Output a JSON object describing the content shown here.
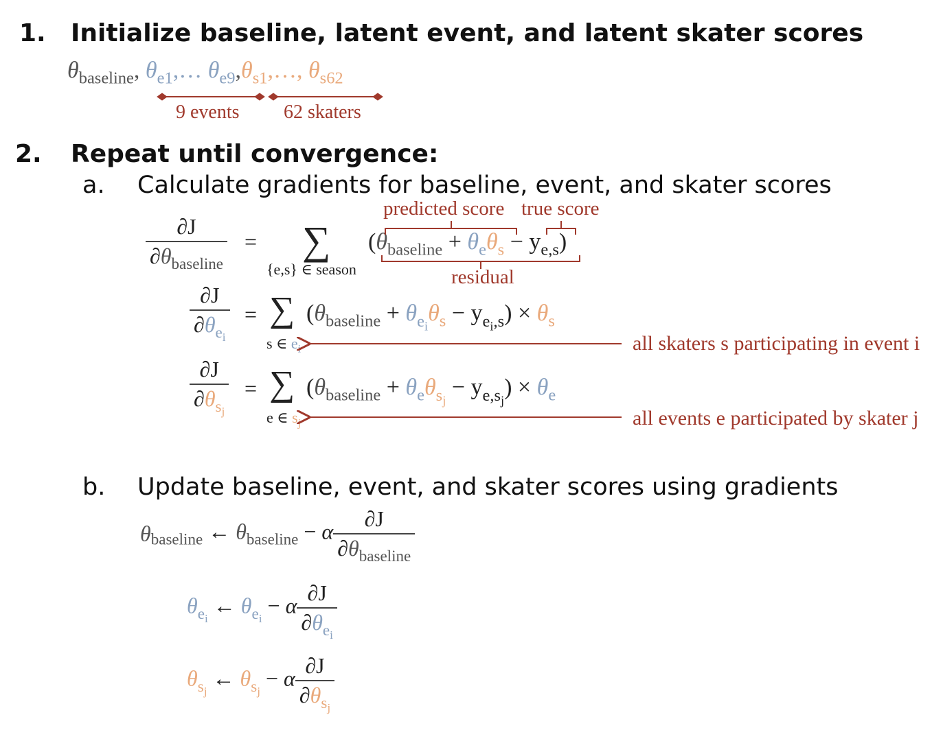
{
  "step1": {
    "number": "1.",
    "heading": "Initialize baseline, latent event, and latent skater scores",
    "params": {
      "baseline_sub": "baseline",
      "event_first_sub": "e1",
      "event_last_sub": "e9",
      "skater_first_sub": "s1",
      "skater_last_sub": "s62",
      "ellipsis_events": ",…",
      "ellipsis_skaters": ",…,"
    },
    "events_label": "9 events",
    "skaters_label": "62 skaters"
  },
  "step2": {
    "number": "2.",
    "heading": "Repeat until convergence:",
    "sub_a": {
      "letter": "a.",
      "text": "Calculate gradients for baseline, event, and skater scores",
      "annotations": {
        "predicted": "predicted score",
        "true": "true score",
        "residual": "residual",
        "all_skaters": "all skaters s participating in event i",
        "all_events": "all events e participated by skater j"
      },
      "eq1": {
        "num": "∂J",
        "den_sub": "baseline",
        "sum_index": "{e,s} ∈ season",
        "y_sub": "e,s"
      },
      "eq2": {
        "num": "∂J",
        "sum_index_prefix": "s ∈ e",
        "y_sub": "e",
        "y_sub_tail": ",s"
      },
      "eq3": {
        "num": "∂J",
        "sum_index_prefix": "e ∈ s",
        "y_sub_head": "e,s"
      }
    },
    "sub_b": {
      "letter": "b.",
      "text": "Update baseline, event, and skater scores using gradients",
      "baseline_sub": "baseline",
      "alpha": "α",
      "num": "∂J"
    }
  },
  "colors": {
    "annotation": "#a0392c",
    "event_theta": "#8aa2c0",
    "skater_theta": "#e9a97b",
    "baseline_theta": "#555555"
  }
}
